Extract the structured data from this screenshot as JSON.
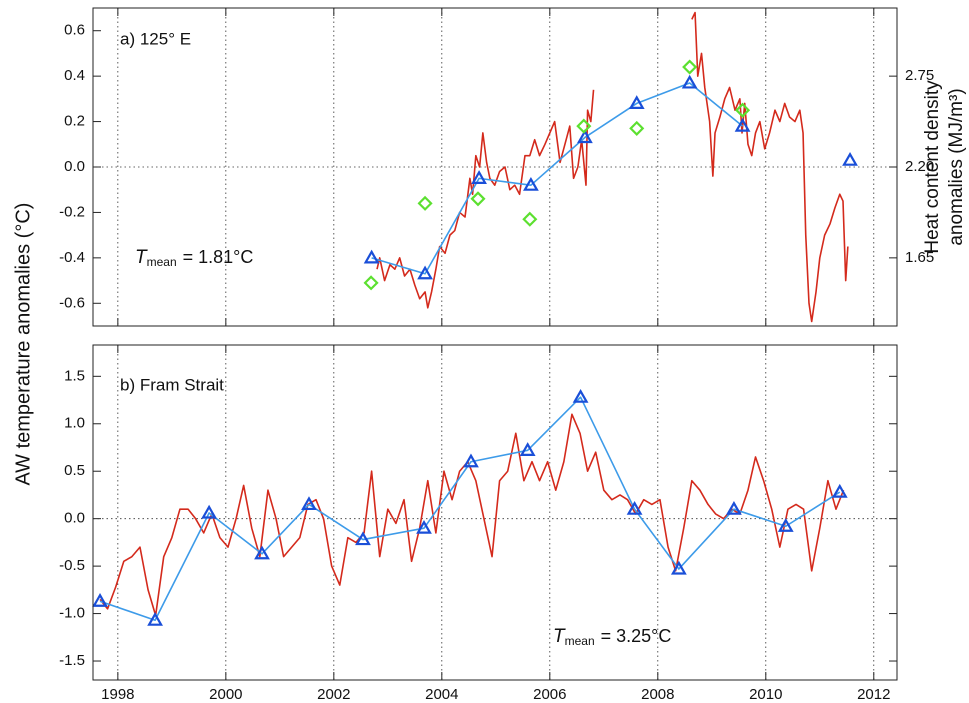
{
  "chart_data": [
    {
      "type": "line",
      "title": "a) 125° E",
      "ylabel": "AW temperature anomalies (°C)",
      "y2label": [
        "Heat content density",
        "anomalies (MJ/m³)"
      ],
      "annotation": {
        "symbol": "T",
        "subscript": "mean",
        "text": "= 1.81°C"
      },
      "xlim": [
        1997.54,
        2012.43
      ],
      "xticks": [
        1998,
        2000,
        2002,
        2004,
        2006,
        2008,
        2010,
        2012
      ],
      "show_xtick_labels": false,
      "ylim": [
        -0.7,
        0.7
      ],
      "yticks": [
        -0.6,
        -0.4,
        -0.2,
        {
          "value": 0,
          "label": "0.0"
        },
        0.2,
        0.4,
        0.6
      ],
      "y2lim": [
        1.2375,
        3.1625
      ],
      "y2ticks": [
        1.65,
        {
          "value": 2.2,
          "label": "2.20"
        },
        2.75
      ],
      "grid": "x",
      "zero_line": true,
      "series": [
        {
          "marker": "none",
          "color": "#d42a1c",
          "x": [
            2002.8,
            2002.85,
            2002.94,
            2003.04,
            2003.13,
            2003.22,
            2003.31,
            2003.41,
            2003.5,
            2003.59,
            2003.69,
            2003.74,
            2003.81,
            2003.89,
            2003.96,
            2004.06,
            2004.15,
            2004.24,
            2004.33,
            2004.43,
            2004.52,
            2004.57,
            2004.63,
            2004.7,
            2004.76,
            2004.83,
            2004.89,
            2004.98,
            2005.07,
            2005.17,
            2005.26,
            2005.35,
            2005.44,
            2005.54,
            2005.63,
            2005.72,
            2005.81,
            2005.91,
            2006.0,
            2006.09,
            2006.19,
            2006.28,
            2006.37,
            2006.44,
            2006.52,
            2006.59,
            2006.67,
            2006.7,
            2006.76,
            2006.81,
            2007.7,
            2008.63,
            2008.69,
            2008.74,
            2008.81,
            2008.87,
            2008.96,
            2009.02,
            2009.06,
            2009.15,
            2009.24,
            2009.33,
            2009.43,
            2009.52,
            2009.56,
            2009.61,
            2009.67,
            2009.74,
            2009.81,
            2009.89,
            2009.98,
            2010.07,
            2010.17,
            2010.26,
            2010.35,
            2010.44,
            2010.54,
            2010.63,
            2010.69,
            2010.74,
            2010.8,
            2010.85,
            2010.93,
            2011.0,
            2011.09,
            2011.19,
            2011.28,
            2011.37,
            2011.43,
            2011.48,
            2011.52
          ],
          "values": [
            -0.45,
            -0.4,
            -0.5,
            -0.43,
            -0.45,
            -0.4,
            -0.48,
            -0.45,
            -0.52,
            -0.58,
            -0.55,
            -0.62,
            -0.55,
            -0.45,
            -0.35,
            -0.38,
            -0.3,
            -0.28,
            -0.2,
            -0.22,
            -0.05,
            -0.12,
            0.05,
            0.0,
            0.15,
            0.02,
            -0.05,
            -0.08,
            -0.02,
            0.0,
            -0.1,
            -0.08,
            -0.12,
            0.05,
            0.05,
            0.12,
            0.05,
            0.1,
            0.15,
            0.2,
            0.02,
            0.1,
            0.18,
            -0.05,
            0.0,
            0.12,
            -0.08,
            0.25,
            0.2,
            0.34,
            null,
            0.65,
            0.68,
            0.4,
            0.5,
            0.35,
            0.2,
            -0.04,
            0.15,
            0.22,
            0.3,
            0.35,
            0.25,
            0.3,
            0.15,
            0.28,
            0.1,
            0.05,
            0.15,
            0.2,
            0.08,
            0.15,
            0.25,
            0.2,
            0.28,
            0.22,
            0.2,
            0.25,
            0.15,
            -0.3,
            -0.6,
            -0.68,
            -0.55,
            -0.4,
            -0.3,
            -0.25,
            -0.18,
            -0.12,
            -0.15,
            -0.5,
            -0.35
          ]
        },
        {
          "marker": "triangle",
          "color": "#1a4fd8",
          "line_color": "#3d9be9",
          "x": [
            2002.7,
            2003.69,
            2004.69,
            2005.65,
            2006.65,
            2007.61,
            2008.59,
            2009.57,
            2010.58,
            2011.56
          ],
          "values": [
            -0.4,
            -0.47,
            -0.05,
            -0.08,
            0.13,
            0.28,
            0.37,
            0.18,
            null,
            0.03
          ]
        },
        {
          "marker": "diamond",
          "color": "#5ce030",
          "x": [
            2002.69,
            2003.69,
            2004.67,
            2005.63,
            2006.63,
            2007.61,
            2008.59,
            2009.57
          ],
          "values": [
            -0.51,
            -0.16,
            -0.14,
            -0.23,
            0.18,
            0.17,
            0.44,
            0.25
          ]
        }
      ]
    },
    {
      "type": "line",
      "title": "b) Fram Strait",
      "annotation": {
        "symbol": "T",
        "subscript": "mean",
        "text": "= 3.25°C"
      },
      "xlim": [
        1997.54,
        2012.43
      ],
      "xticks": [
        1998,
        2000,
        2002,
        2004,
        2006,
        2008,
        2010,
        2012
      ],
      "show_xtick_labels": true,
      "ylim": [
        -1.7,
        1.83
      ],
      "yticks": [
        -1.5,
        {
          "value": -1,
          "label": "-1.0"
        },
        -0.5,
        {
          "value": 0,
          "label": "0.0"
        },
        0.5,
        {
          "value": 1,
          "label": "1.0"
        },
        1.5
      ],
      "grid": "x",
      "zero_line": true,
      "series": [
        {
          "marker": "none",
          "color": "#d42a1c",
          "x": [
            1997.67,
            1997.81,
            1997.96,
            1998.11,
            1998.26,
            1998.41,
            1998.56,
            1998.7,
            1998.85,
            1999.0,
            1999.15,
            1999.3,
            1999.44,
            1999.59,
            1999.74,
            1999.89,
            2000.04,
            2000.19,
            2000.33,
            2000.48,
            2000.63,
            2000.78,
            2000.93,
            2001.07,
            2001.22,
            2001.37,
            2001.52,
            2001.67,
            2001.81,
            2001.96,
            2002.11,
            2002.26,
            2002.41,
            2002.56,
            2002.7,
            2002.85,
            2003.0,
            2003.15,
            2003.3,
            2003.44,
            2003.59,
            2003.74,
            2003.89,
            2004.04,
            2004.19,
            2004.33,
            2004.48,
            2004.63,
            2004.78,
            2004.93,
            2005.07,
            2005.22,
            2005.37,
            2005.52,
            2005.67,
            2005.81,
            2005.96,
            2006.11,
            2006.26,
            2006.41,
            2006.56,
            2006.7,
            2006.85,
            2007.0,
            2007.15,
            2007.3,
            2007.44,
            2007.59,
            2007.74,
            2007.89,
            2008.04,
            2008.19,
            2008.33,
            2008.48,
            2008.63,
            2008.78,
            2008.93,
            2009.07,
            2009.22,
            2009.37,
            2009.52,
            2009.67,
            2009.81,
            2009.96,
            2010.11,
            2010.26,
            2010.41,
            2010.56,
            2010.7,
            2010.85,
            2011.0,
            2011.15,
            2011.3,
            2011.44
          ],
          "values": [
            -0.85,
            -0.95,
            -0.72,
            -0.45,
            -0.4,
            -0.3,
            -0.75,
            -1.02,
            -0.4,
            -0.2,
            0.1,
            0.1,
            0.0,
            -0.15,
            0.05,
            -0.2,
            -0.3,
            0.0,
            0.35,
            -0.1,
            -0.4,
            0.3,
            0.0,
            -0.4,
            -0.3,
            -0.2,
            0.15,
            0.2,
            0.0,
            -0.5,
            -0.7,
            -0.2,
            -0.25,
            -0.15,
            0.5,
            -0.4,
            0.1,
            -0.05,
            0.2,
            -0.45,
            -0.1,
            0.4,
            -0.15,
            0.5,
            0.2,
            0.5,
            0.6,
            0.4,
            0.0,
            -0.4,
            0.4,
            0.5,
            0.9,
            0.4,
            0.6,
            0.4,
            0.6,
            0.3,
            0.6,
            1.1,
            0.9,
            0.5,
            0.7,
            0.3,
            0.2,
            0.25,
            0.2,
            0.05,
            0.2,
            0.15,
            0.2,
            -0.3,
            -0.55,
            -0.1,
            0.4,
            0.3,
            0.15,
            0.05,
            0.0,
            0.1,
            0.05,
            0.3,
            0.65,
            0.4,
            0.1,
            -0.3,
            0.1,
            0.15,
            0.1,
            -0.55,
            -0.1,
            0.4,
            0.1,
            0.3
          ]
        },
        {
          "marker": "triangle",
          "color": "#1a4fd8",
          "line_color": "#3d9be9",
          "x": [
            1997.67,
            1998.69,
            1999.69,
            2000.67,
            2001.54,
            2002.54,
            2003.67,
            2004.54,
            2005.59,
            2006.57,
            2007.57,
            2008.39,
            2009.41,
            2010.37,
            2011.37
          ],
          "values": [
            -0.87,
            -1.07,
            0.06,
            -0.37,
            0.15,
            -0.22,
            -0.1,
            0.6,
            0.72,
            1.28,
            0.1,
            -0.53,
            0.1,
            -0.08,
            0.28
          ]
        }
      ]
    }
  ]
}
